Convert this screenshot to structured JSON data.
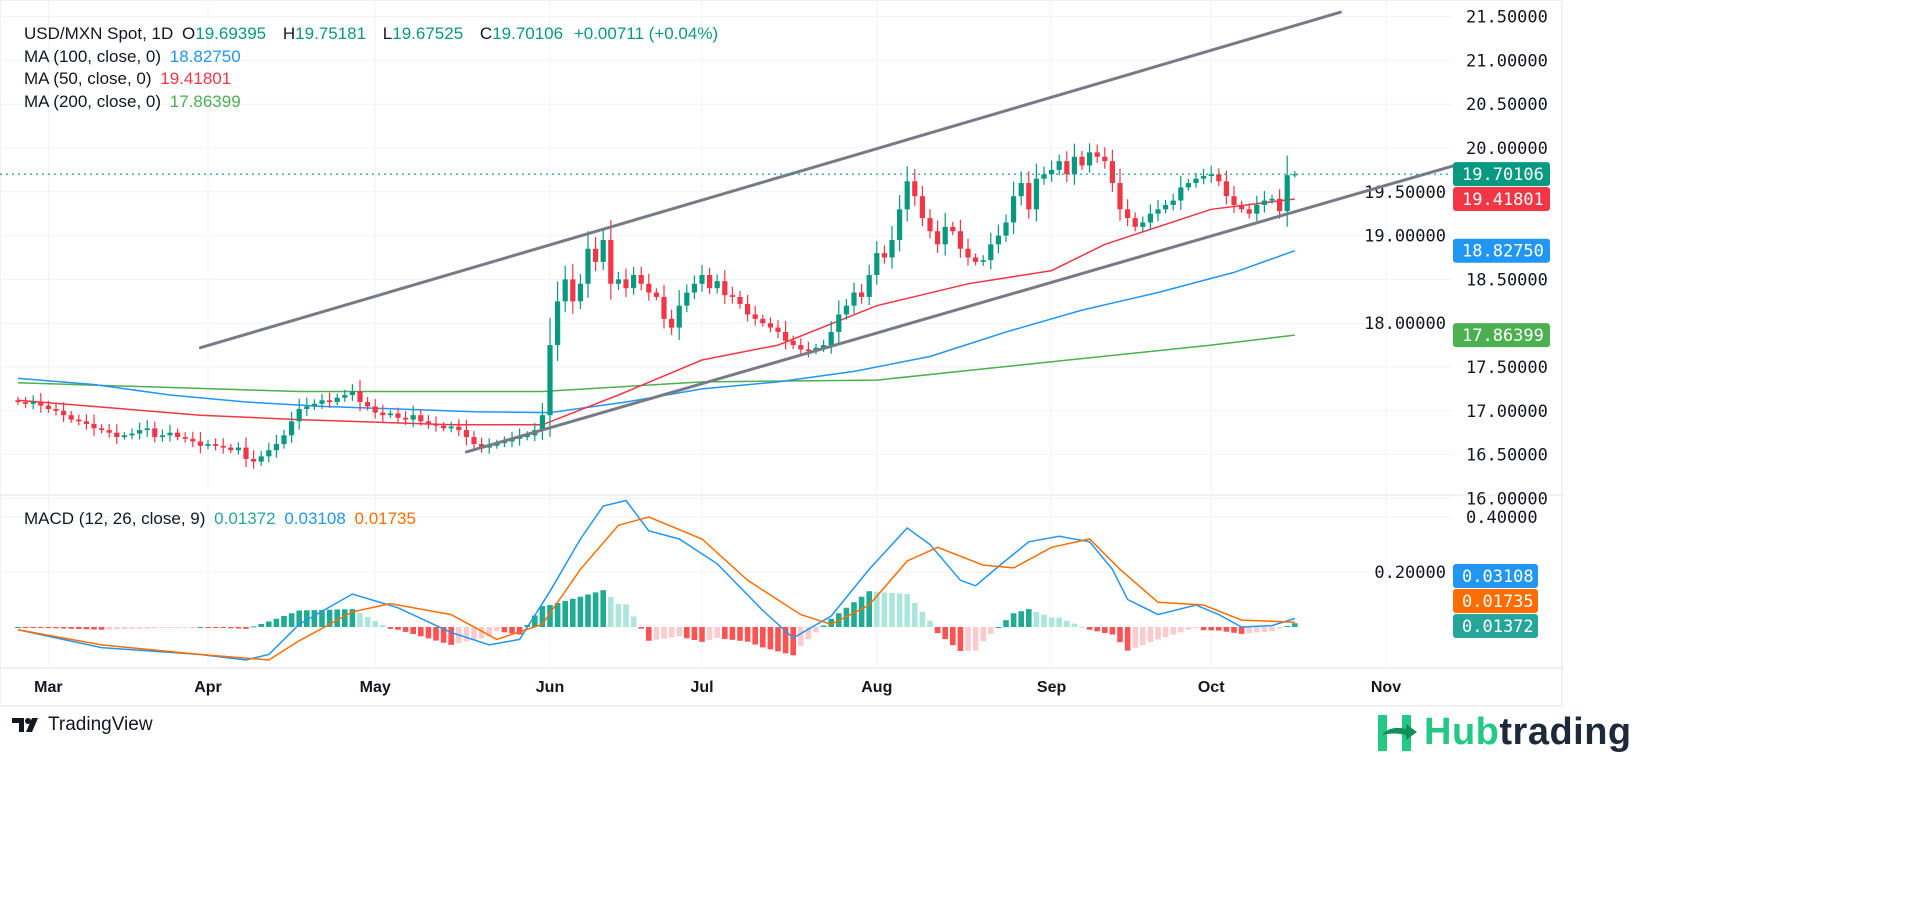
{
  "header": {
    "symbol": "USD/MXN Spot, 1D",
    "open_label": "O",
    "open": "19.69395",
    "high_label": "H",
    "high": "19.75181",
    "low_label": "L",
    "low": "19.67525",
    "close_label": "C",
    "close": "19.70106",
    "change": "+0.00711 (+0.04%)"
  },
  "indicators": {
    "ma100": {
      "label": "MA (100, close, 0)",
      "value": "18.82750",
      "color": "#2196f3"
    },
    "ma50": {
      "label": "MA (50, close, 0)",
      "value": "19.41801",
      "color": "#f23645"
    },
    "ma200": {
      "label": "MA (200, close, 0)",
      "value": "17.86399",
      "color": "#4caf50"
    },
    "macd": {
      "label": "MACD (12, 26, close, 9)",
      "hist": "0.01372",
      "macd": "0.03108",
      "signal": "0.01735"
    }
  },
  "branding": {
    "tradingview": "TradingView",
    "hub_a": "Hub",
    "hub_b": "trading"
  },
  "colors": {
    "up": "#089981",
    "down": "#f23645",
    "ma100": "#2196f3",
    "ma50": "#f23645",
    "ma200": "#4caf50",
    "macd": "#2196f3",
    "signal": "#ff6d00",
    "hist_up_strong": "#22ab94",
    "hist_up_weak": "#ace5dc",
    "hist_down_strong": "#ff5252",
    "hist_down_weak": "#fccbcd",
    "trendline": "#787b86"
  },
  "chart_data": {
    "type": "candlestick",
    "price_axis": {
      "ticks": [
        "21.50000",
        "21.00000",
        "20.50000",
        "20.00000",
        "19.50000",
        "19.00000",
        "18.50000",
        "18.00000",
        "17.50000",
        "17.00000",
        "16.50000",
        "16.00000"
      ],
      "range": [
        16.0,
        21.5
      ]
    },
    "macd_axis": {
      "ticks": [
        "0.40000",
        "0.20000"
      ],
      "range": [
        -0.13,
        0.47
      ]
    },
    "x_ticks": [
      {
        "label": "Mar",
        "bar": 4
      },
      {
        "label": "Apr",
        "bar": 25
      },
      {
        "label": "May",
        "bar": 47
      },
      {
        "label": "Jun",
        "bar": 70
      },
      {
        "label": "Jul",
        "bar": 90
      },
      {
        "label": "Aug",
        "bar": 113
      },
      {
        "label": "Sep",
        "bar": 136
      },
      {
        "label": "Oct",
        "bar": 157
      },
      {
        "label": "Nov",
        "bar": 180
      }
    ],
    "close": [
      17.1,
      17.08,
      17.1,
      17.06,
      17.02,
      17.0,
      16.95,
      16.9,
      16.88,
      16.85,
      16.8,
      16.78,
      16.75,
      16.7,
      16.72,
      16.74,
      16.78,
      16.8,
      16.7,
      16.72,
      16.75,
      16.7,
      16.68,
      16.65,
      16.6,
      16.62,
      16.6,
      16.58,
      16.55,
      16.58,
      16.45,
      16.42,
      16.48,
      16.55,
      16.62,
      16.72,
      16.88,
      17.02,
      17.05,
      17.08,
      17.12,
      17.1,
      17.15,
      17.18,
      17.22,
      17.1,
      17.05,
      16.98,
      16.95,
      16.97,
      16.92,
      16.9,
      16.95,
      16.88,
      16.85,
      16.83,
      16.8,
      16.82,
      16.78,
      16.7,
      16.62,
      16.58,
      16.6,
      16.63,
      16.65,
      16.68,
      16.7,
      16.72,
      16.78,
      16.95,
      17.75,
      18.25,
      18.5,
      18.25,
      18.45,
      18.85,
      18.7,
      18.95,
      18.45,
      18.5,
      18.4,
      18.55,
      18.45,
      18.35,
      18.3,
      18.05,
      17.95,
      18.2,
      18.35,
      18.45,
      18.55,
      18.4,
      18.48,
      18.32,
      18.3,
      18.22,
      18.1,
      18.05,
      18.0,
      17.95,
      17.9,
      17.8,
      17.75,
      17.7,
      17.68,
      17.72,
      17.75,
      17.9,
      18.1,
      18.2,
      18.35,
      18.3,
      18.55,
      18.8,
      18.75,
      18.95,
      19.3,
      19.62,
      19.45,
      19.2,
      19.05,
      18.9,
      19.1,
      19.05,
      18.85,
      18.75,
      18.7,
      18.72,
      18.9,
      19.0,
      19.15,
      19.45,
      19.6,
      19.3,
      19.65,
      19.7,
      19.75,
      19.85,
      19.7,
      19.9,
      19.8,
      19.95,
      19.9,
      19.85,
      19.6,
      19.3,
      19.2,
      19.1,
      19.15,
      19.25,
      19.3,
      19.35,
      19.4,
      19.55,
      19.6,
      19.65,
      19.68,
      19.7,
      19.62,
      19.45,
      19.35,
      19.3,
      19.25,
      19.35,
      19.4,
      19.42,
      19.28,
      19.69,
      19.70106
    ],
    "last_price": {
      "value": 19.70106,
      "label": "19.70106"
    },
    "ma100": [
      [
        0,
        17.37
      ],
      [
        10,
        17.3
      ],
      [
        20,
        17.18
      ],
      [
        30,
        17.1
      ],
      [
        40,
        17.05
      ],
      [
        50,
        17.02
      ],
      [
        60,
        16.99
      ],
      [
        70,
        16.98
      ],
      [
        80,
        17.1
      ],
      [
        90,
        17.25
      ],
      [
        100,
        17.33
      ],
      [
        110,
        17.45
      ],
      [
        120,
        17.62
      ],
      [
        130,
        17.9
      ],
      [
        140,
        18.15
      ],
      [
        150,
        18.35
      ],
      [
        160,
        18.58
      ],
      [
        168,
        18.8275
      ]
    ],
    "ma50": [
      [
        0,
        17.12
      ],
      [
        24,
        16.95
      ],
      [
        37,
        16.9
      ],
      [
        57,
        16.84
      ],
      [
        69,
        16.84
      ],
      [
        79,
        17.18
      ],
      [
        90,
        17.58
      ],
      [
        100,
        17.75
      ],
      [
        113,
        18.2
      ],
      [
        125,
        18.45
      ],
      [
        136,
        18.6
      ],
      [
        143,
        18.9
      ],
      [
        157,
        19.3
      ],
      [
        168,
        19.41801
      ]
    ],
    "ma200": [
      [
        0,
        17.32
      ],
      [
        37,
        17.22
      ],
      [
        69,
        17.22
      ],
      [
        90,
        17.33
      ],
      [
        113,
        17.35
      ],
      [
        136,
        17.56
      ],
      [
        157,
        17.75
      ],
      [
        168,
        17.86399
      ]
    ],
    "trendlines": [
      {
        "from": [
          24,
          17.72
        ],
        "to": [
          174,
          21.55
        ]
      },
      {
        "from": [
          59,
          16.53
        ],
        "to": [
          189,
          19.8
        ]
      }
    ],
    "macd_line": [
      [
        0,
        -0.01
      ],
      [
        11,
        -0.075
      ],
      [
        24,
        -0.1
      ],
      [
        30,
        -0.12
      ],
      [
        33,
        -0.1
      ],
      [
        37,
        0.01
      ],
      [
        44,
        0.12
      ],
      [
        50,
        0.07
      ],
      [
        57,
        -0.02
      ],
      [
        62,
        -0.065
      ],
      [
        66,
        -0.045
      ],
      [
        70,
        0.13
      ],
      [
        74,
        0.32
      ],
      [
        77,
        0.44
      ],
      [
        80,
        0.46
      ],
      [
        83,
        0.35
      ],
      [
        87,
        0.32
      ],
      [
        92,
        0.23
      ],
      [
        98,
        0.06
      ],
      [
        102,
        -0.04
      ],
      [
        107,
        0.04
      ],
      [
        112,
        0.21
      ],
      [
        117,
        0.36
      ],
      [
        120,
        0.3
      ],
      [
        124,
        0.17
      ],
      [
        126,
        0.15
      ],
      [
        129,
        0.22
      ],
      [
        133,
        0.31
      ],
      [
        137,
        0.33
      ],
      [
        141,
        0.31
      ],
      [
        144,
        0.21
      ],
      [
        146,
        0.1
      ],
      [
        150,
        0.045
      ],
      [
        155,
        0.08
      ],
      [
        158,
        0.045
      ],
      [
        161,
        0.0
      ],
      [
        165,
        0.005
      ],
      [
        168,
        0.03108
      ]
    ],
    "signal_line": [
      [
        0,
        -0.01
      ],
      [
        11,
        -0.065
      ],
      [
        24,
        -0.1
      ],
      [
        33,
        -0.12
      ],
      [
        37,
        -0.05
      ],
      [
        44,
        0.055
      ],
      [
        49,
        0.085
      ],
      [
        57,
        0.045
      ],
      [
        63,
        -0.045
      ],
      [
        69,
        0.01
      ],
      [
        74,
        0.21
      ],
      [
        79,
        0.37
      ],
      [
        83,
        0.4
      ],
      [
        90,
        0.32
      ],
      [
        96,
        0.17
      ],
      [
        103,
        0.045
      ],
      [
        107,
        0.01
      ],
      [
        112,
        0.08
      ],
      [
        117,
        0.24
      ],
      [
        121,
        0.29
      ],
      [
        127,
        0.225
      ],
      [
        131,
        0.215
      ],
      [
        136,
        0.29
      ],
      [
        141,
        0.32
      ],
      [
        145,
        0.21
      ],
      [
        150,
        0.09
      ],
      [
        156,
        0.08
      ],
      [
        161,
        0.025
      ],
      [
        168,
        0.01735
      ]
    ],
    "badges": {
      "price": [
        {
          "label": "19.70106",
          "value": 19.70106,
          "color": "#089981"
        },
        {
          "label": "19.41801",
          "value": 19.41801,
          "color": "#f23645"
        },
        {
          "label": "18.82750",
          "value": 18.8275,
          "color": "#2196f3"
        },
        {
          "label": "17.86399",
          "value": 17.86399,
          "color": "#4caf50"
        }
      ],
      "macd": [
        {
          "label": "0.03108",
          "value": 0.03108,
          "color": "#2196f3"
        },
        {
          "label": "0.01735",
          "value": 0.01735,
          "color": "#ff6d00"
        },
        {
          "label": "0.01372",
          "value": 0.01372,
          "color": "#26a69a"
        }
      ]
    }
  }
}
